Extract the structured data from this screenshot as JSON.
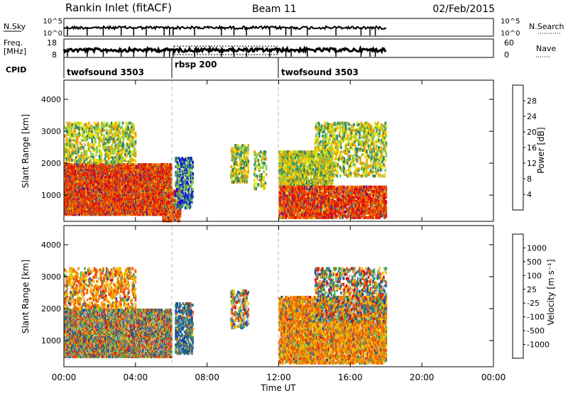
{
  "header": {
    "station": "Rankin Inlet (fitACF)",
    "beam": "Beam 11",
    "date": "02/Feb/2015"
  },
  "control_panels": {
    "nsky_label": "N.Sky",
    "nsky_ticks": [
      "10^5",
      "10^0"
    ],
    "nsearch_label": "N.Search",
    "nsearch_ticks": [
      "10^5",
      "10^0"
    ],
    "freq_label": "Freq.",
    "freq_unit": "[MHz]",
    "freq_ticks": [
      "18",
      "8"
    ],
    "nave_label": "Nave",
    "nave_ticks": [
      "60",
      "0"
    ],
    "cpid_label": "CPID",
    "cpid_segments": [
      {
        "name": "twofsound 3503",
        "start_h": 0,
        "end_h": 6
      },
      {
        "name": "rbsp 200",
        "start_h": 6,
        "end_h": 12
      },
      {
        "name": "twofsound 3503",
        "start_h": 12,
        "end_h": 18
      }
    ]
  },
  "chart_data": [
    {
      "type": "heatmap",
      "parameter": "Power",
      "ylabel": "Slant Range [km]",
      "y_ticks": [
        1000,
        2000,
        3000,
        4000
      ],
      "ylim": [
        180,
        4600
      ],
      "colorbar_label": "Power [dB]",
      "colorbar_ticks": [
        "4",
        "8",
        "12",
        "16",
        "20",
        "24",
        "28"
      ],
      "colorbar_colors": [
        "#1111e0",
        "#2a54a8",
        "#2f8a6a",
        "#8ecb4a",
        "#e8e000",
        "#f2a000",
        "#ee6000",
        "#e01010"
      ],
      "x_range_hours": [
        0,
        24
      ],
      "data_end_hour": 18,
      "scatter_regions": [
        {
          "t0": 0.0,
          "t1": 6.0,
          "r0": 400,
          "r1": 2000,
          "dominant": "high",
          "density": 0.85
        },
        {
          "t0": 0.0,
          "t1": 4.0,
          "r0": 2000,
          "r1": 3300,
          "dominant": "mid",
          "density": 0.25
        },
        {
          "t0": 5.5,
          "t1": 6.5,
          "r0": 200,
          "r1": 1200,
          "dominant": "high",
          "density": 0.5
        },
        {
          "t0": 6.2,
          "t1": 7.2,
          "r0": 600,
          "r1": 2200,
          "dominant": "low",
          "density": 0.35
        },
        {
          "t0": 9.3,
          "t1": 10.3,
          "r0": 1400,
          "r1": 2600,
          "dominant": "mid",
          "density": 0.35
        },
        {
          "t0": 10.6,
          "t1": 11.3,
          "r0": 1200,
          "r1": 2400,
          "dominant": "mid",
          "density": 0.2
        },
        {
          "t0": 12.0,
          "t1": 15.0,
          "r0": 1300,
          "r1": 2400,
          "dominant": "mid",
          "density": 0.55
        },
        {
          "t0": 12.0,
          "t1": 18.0,
          "r0": 300,
          "r1": 1300,
          "dominant": "high",
          "density": 0.55
        },
        {
          "t0": 14.0,
          "t1": 18.0,
          "r0": 1600,
          "r1": 3300,
          "dominant": "mid",
          "density": 0.25
        }
      ]
    },
    {
      "type": "heatmap",
      "parameter": "Velocity",
      "ylabel": "Slant Range [km]",
      "y_ticks": [
        1000,
        2000,
        3000,
        4000
      ],
      "ylim": [
        180,
        4600
      ],
      "colorbar_label": "Velocity [m s⁻¹]",
      "colorbar_ticks": [
        "1000",
        "500",
        "100",
        "25",
        "-25",
        "-100",
        "-500",
        "-1000"
      ],
      "colorbar_colors": [
        "#1848a0",
        "#2f6aa0",
        "#3c8c6a",
        "#55c040",
        "#bebebe",
        "#f0c000",
        "#f08c00",
        "#f05010",
        "#e01010"
      ],
      "x_range_hours": [
        0,
        24
      ],
      "data_end_hour": 18,
      "scatter_regions": [
        {
          "t0": 0.0,
          "t1": 6.0,
          "r0": 500,
          "r1": 2000,
          "dominant": "mixed",
          "density": 0.85
        },
        {
          "t0": 0.0,
          "t1": 4.0,
          "r0": 2000,
          "r1": 3300,
          "dominant": "neg",
          "density": 0.25
        },
        {
          "t0": 6.2,
          "t1": 7.2,
          "r0": 600,
          "r1": 2200,
          "dominant": "pos",
          "density": 0.35
        },
        {
          "t0": 9.3,
          "t1": 10.3,
          "r0": 1400,
          "r1": 2600,
          "dominant": "mixed",
          "density": 0.3
        },
        {
          "t0": 12.0,
          "t1": 18.0,
          "r0": 300,
          "r1": 2400,
          "dominant": "neg",
          "density": 0.6
        },
        {
          "t0": 14.0,
          "t1": 18.0,
          "r0": 1600,
          "r1": 3300,
          "dominant": "mixed",
          "density": 0.25
        }
      ]
    }
  ],
  "x_axis": {
    "label": "Time UT",
    "ticks": [
      "00:00",
      "04:00",
      "08:00",
      "12:00",
      "16:00",
      "20:00",
      "00:00"
    ]
  }
}
